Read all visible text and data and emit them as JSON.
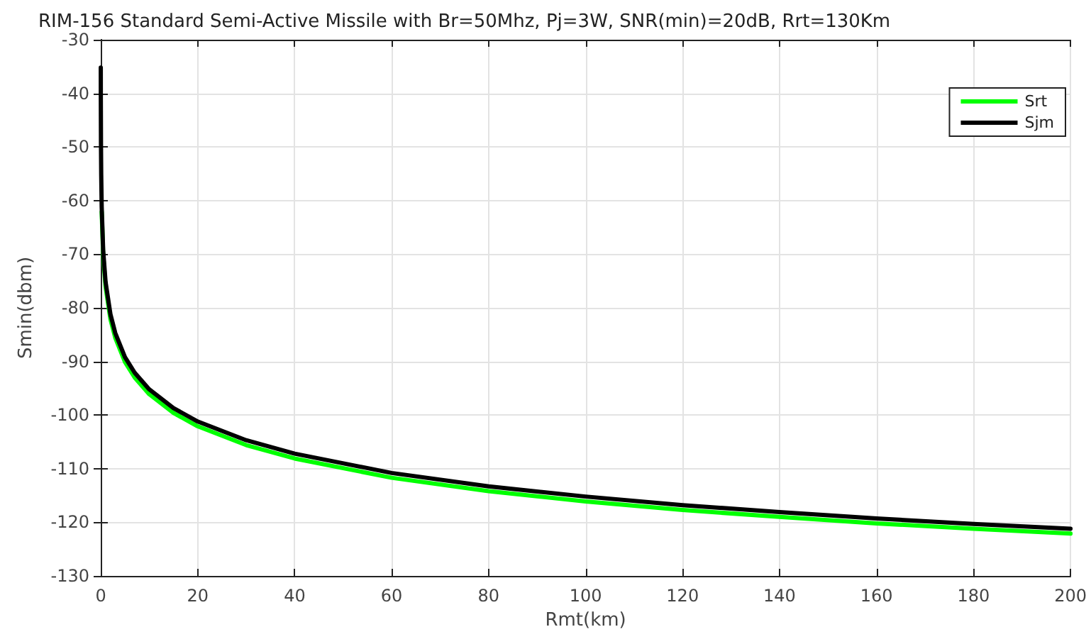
{
  "chart_data": {
    "type": "line",
    "title": "RIM-156 Standard Semi-Active Missile with Br=50Mhz, Pj=3W, SNR(min)=20dB, Rrt=130Km",
    "xlabel": "Rmt(km)",
    "ylabel": "Smin(dbm)",
    "xlim": [
      0,
      200
    ],
    "xticks": [
      0,
      20,
      40,
      60,
      80,
      100,
      120,
      140,
      160,
      180,
      200
    ],
    "ylim": [
      -130,
      -30
    ],
    "yticks": [
      -130,
      -120,
      -110,
      -100,
      -90,
      -80,
      -70,
      -60,
      -50,
      -40,
      -30
    ],
    "grid": true,
    "legend": "top right",
    "marker": "none",
    "line_style": "solid",
    "series": [
      {
        "name": "Srt",
        "color": "#00ff00",
        "x": [
          0.2,
          0.5,
          1,
          2,
          3,
          5,
          7,
          10,
          15,
          20,
          30,
          40,
          60,
          80,
          100,
          120,
          140,
          160,
          180,
          200
        ],
        "values": [
          -62.1,
          -70.1,
          -76.1,
          -82.1,
          -85.6,
          -90.1,
          -93.0,
          -96.1,
          -99.6,
          -102.1,
          -105.6,
          -108.1,
          -111.7,
          -114.2,
          -116.1,
          -117.7,
          -119.0,
          -120.2,
          -121.2,
          -122.1
        ]
      },
      {
        "name": "Sjm",
        "color": "#000000",
        "x": [
          0.01,
          0.02,
          0.05,
          0.1,
          0.2,
          0.5,
          1,
          2,
          3,
          5,
          7,
          10,
          15,
          20,
          30,
          40,
          60,
          80,
          100,
          120,
          140,
          160,
          180,
          200
        ],
        "values": [
          -35.2,
          -41.2,
          -49.2,
          -55.2,
          -61.2,
          -69.2,
          -75.2,
          -81.2,
          -84.7,
          -89.2,
          -92.1,
          -95.2,
          -98.7,
          -101.2,
          -104.7,
          -107.2,
          -110.8,
          -113.3,
          -115.2,
          -116.8,
          -118.1,
          -119.3,
          -120.3,
          -121.2
        ]
      }
    ]
  }
}
